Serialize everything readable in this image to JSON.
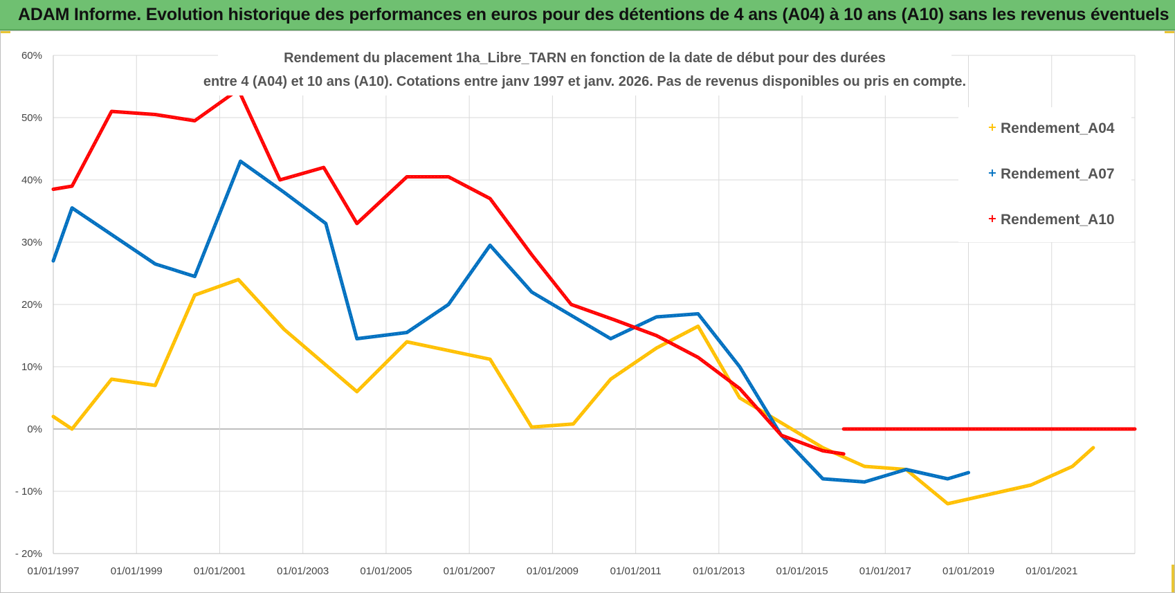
{
  "banner": {
    "title": "ADAM Informe. Evolution historique des performances en euros pour des détentions de 4 ans (A04) à 10 ans (A10) sans les revenus éventuels"
  },
  "colors": {
    "banner_bg": "#6fc071",
    "a04": "#ffc000",
    "a07": "#0070c0",
    "a10": "#ff0000",
    "grid": "#d9d9d9",
    "zero_line": "#bfbfbf"
  },
  "chart_data": {
    "type": "line",
    "title_lines": [
      "Rendement du placement 1ha_Libre_TARN en fonction de la date de début pour des durées",
      "entre 4 (A04) et 10 ans (A10). Cotations entre janv 1997 et janv. 2026. Pas de revenus disponibles ou pris en compte."
    ],
    "xlabel": "",
    "ylabel": "",
    "x_range": [
      1997.0,
      2023.0
    ],
    "ylim": [
      -20,
      60
    ],
    "y_ticks": [
      60,
      50,
      40,
      30,
      20,
      10,
      0,
      -10,
      -20
    ],
    "y_tick_labels": [
      "60%",
      "50%",
      "40%",
      "30%",
      "20%",
      "10%",
      "0%",
      "- 10%",
      "- 20%"
    ],
    "x_ticks": [
      1997,
      1999,
      2001,
      2003,
      2005,
      2007,
      2009,
      2011,
      2013,
      2015,
      2017,
      2019,
      2021
    ],
    "x_tick_labels": [
      "01/01/1997",
      "01/01/1999",
      "01/01/2001",
      "01/01/2003",
      "01/01/2005",
      "01/01/2007",
      "01/01/2009",
      "01/01/2011",
      "01/01/2013",
      "01/01/2015",
      "01/01/2017",
      "01/01/2019",
      "01/01/2021"
    ],
    "grid": true,
    "legend_position": "top-right",
    "series": [
      {
        "name": "Rendement_A04",
        "color": "#ffc000",
        "x": [
          1997.0,
          1997.45,
          1998.4,
          1999.45,
          2000.4,
          2001.45,
          2002.55,
          2004.3,
          2005.5,
          2007.5,
          2008.5,
          2009.5,
          2010.4,
          2011.5,
          2012.5,
          2013.5,
          2014.5,
          2015.5,
          2016.5,
          2017.5,
          2018.5,
          2019.5,
          2020.5,
          2021.5,
          2022.0
        ],
        "values": [
          2,
          0,
          8,
          7,
          21.5,
          24,
          16,
          6,
          14,
          11.2,
          0.3,
          0.8,
          8,
          13,
          16.5,
          5,
          1,
          -3,
          -6,
          -6.5,
          -12,
          -10.5,
          -9,
          -6,
          -3
        ]
      },
      {
        "name": "Rendement_A07",
        "color": "#0070c0",
        "x": [
          1997.0,
          1997.45,
          1999.45,
          2000.4,
          2001.5,
          2002.55,
          2003.55,
          2004.3,
          2005.5,
          2006.5,
          2007.5,
          2008.5,
          2010.4,
          2011.5,
          2012.5,
          2013.5,
          2014.5,
          2015.5,
          2016.5,
          2017.5,
          2018.5,
          2019.0
        ],
        "values": [
          27,
          35.5,
          26.5,
          24.5,
          43,
          38,
          33,
          14.5,
          15.5,
          20,
          29.5,
          22,
          14.5,
          18,
          18.5,
          10,
          -1,
          -8,
          -8.5,
          -6.5,
          -8,
          -7
        ]
      },
      {
        "name": "Rendement_A10",
        "color": "#ff0000",
        "x": [
          1997.0,
          1997.45,
          1998.4,
          1999.45,
          2000.4,
          2001.45,
          2002.45,
          2003.5,
          2004.3,
          2005.5,
          2006.5,
          2007.5,
          2008.5,
          2009.45,
          2010.5,
          2011.5,
          2012.5,
          2013.5,
          2014.5,
          2015.5,
          2016.0
        ],
        "values": [
          38.5,
          39,
          51,
          50.5,
          49.5,
          54.5,
          40,
          42,
          33,
          40.5,
          40.5,
          37,
          28,
          20,
          17.5,
          15,
          11.5,
          6.5,
          -1,
          -3.5,
          -4
        ]
      },
      {
        "name": "Rendement_A10",
        "legend": false,
        "color": "#ff0000",
        "x": [
          2016.0,
          2023.0
        ],
        "values": [
          0,
          0
        ]
      }
    ]
  }
}
